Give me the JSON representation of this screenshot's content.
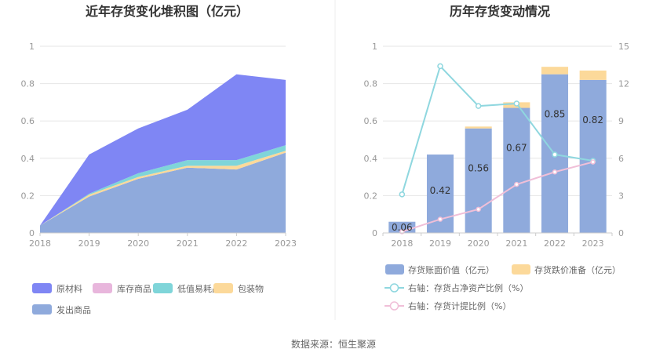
{
  "source": "数据来源：恒生聚源",
  "chart_data": [
    {
      "type": "area",
      "title": "近年存货变化堆积图（亿元）",
      "x": [
        "2018",
        "2019",
        "2020",
        "2021",
        "2022",
        "2023"
      ],
      "ylim": [
        0,
        1
      ],
      "yticks": [
        "0",
        "0.2",
        "0.4",
        "0.6",
        "0.8",
        "1"
      ],
      "stack_order": [
        "发出商品",
        "包装物",
        "低值易耗品",
        "库存商品",
        "原材料"
      ],
      "series": [
        {
          "name": "原材料",
          "color": "#7f86f4",
          "values": [
            0.0,
            0.21,
            0.24,
            0.27,
            0.46,
            0.35
          ]
        },
        {
          "name": "库存商品",
          "color": "#e8b6dc",
          "values": [
            0.0,
            0.0,
            0.0,
            0.0,
            0.0,
            0.0
          ]
        },
        {
          "name": "低值易耗品",
          "color": "#7fd5d9",
          "values": [
            0.0,
            0.005,
            0.02,
            0.03,
            0.03,
            0.03
          ]
        },
        {
          "name": "包装物",
          "color": "#fcd99a",
          "values": [
            0.0,
            0.01,
            0.01,
            0.01,
            0.02,
            0.01
          ]
        },
        {
          "name": "发出商品",
          "color": "#8faadc",
          "values": [
            0.04,
            0.195,
            0.29,
            0.35,
            0.34,
            0.43
          ]
        }
      ],
      "legend": [
        "原材料",
        "库存商品",
        "低值易耗品",
        "包装物",
        "发出商品"
      ]
    },
    {
      "type": "bar",
      "title": "历年存货变动情况",
      "categories": [
        "2018",
        "2019",
        "2020",
        "2021",
        "2022",
        "2023"
      ],
      "ylim": [
        0,
        1
      ],
      "yticks": [
        "0",
        "0.2",
        "0.4",
        "0.6",
        "0.8",
        "1"
      ],
      "y2lim": [
        0,
        15
      ],
      "y2ticks": [
        "0",
        "3",
        "6",
        "9",
        "12",
        "15"
      ],
      "series": [
        {
          "name": "存货账面价值（亿元）",
          "color": "#8faadc",
          "values": [
            0.06,
            0.42,
            0.56,
            0.67,
            0.85,
            0.82
          ],
          "labels": [
            "0.06",
            "0.42",
            "0.56",
            "0.67",
            "0.85",
            "0.82"
          ]
        },
        {
          "name": "存货跌价准备（亿元）",
          "color": "#fcd99a",
          "values": [
            0.0,
            0.0,
            0.01,
            0.03,
            0.04,
            0.05
          ]
        }
      ],
      "lines": [
        {
          "name": "右轴：存货占净资产比例（%）",
          "color": "#8fd7df",
          "axis": "right",
          "values": [
            3.1,
            13.4,
            10.2,
            10.4,
            6.3,
            5.8
          ]
        },
        {
          "name": "右轴：存货计提比例（%）",
          "color": "#f0bfd8",
          "axis": "right",
          "values": [
            0.1,
            1.1,
            1.9,
            3.9,
            4.9,
            5.7
          ]
        }
      ]
    }
  ]
}
